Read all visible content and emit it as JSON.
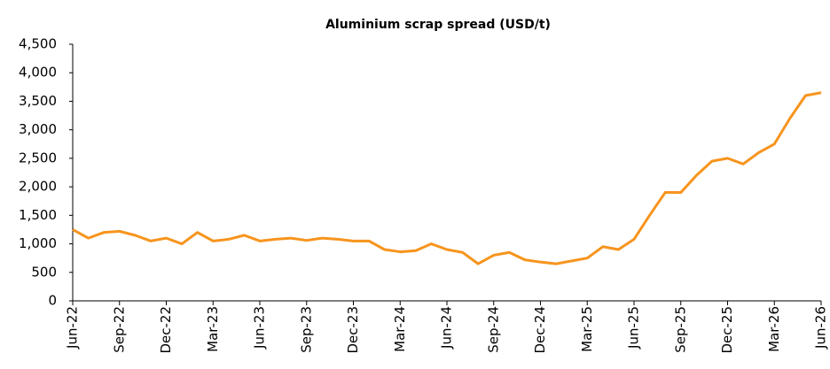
{
  "chart_data": {
    "type": "line",
    "title": "Aluminium scrap spread (USD/t)",
    "x": [
      "Jun-22",
      "Jul-22",
      "Aug-22",
      "Sep-22",
      "Oct-22",
      "Nov-22",
      "Dec-22",
      "Jan-23",
      "Feb-23",
      "Mar-23",
      "Apr-23",
      "May-23",
      "Jun-23",
      "Jul-23",
      "Aug-23",
      "Sep-23",
      "Oct-23",
      "Nov-23",
      "Dec-23",
      "Jan-24",
      "Feb-24",
      "Mar-24",
      "Apr-24",
      "May-24",
      "Jun-24",
      "Jul-24",
      "Aug-24",
      "Sep-24",
      "Oct-24",
      "Nov-24",
      "Dec-24",
      "Jan-25",
      "Feb-25",
      "Mar-25",
      "Apr-25",
      "May-25",
      "Jun-25",
      "Jul-25",
      "Aug-25",
      "Sep-25",
      "Oct-25",
      "Nov-25",
      "Dec-25",
      "Jan-26",
      "Feb-26",
      "Mar-26",
      "Apr-26",
      "May-26",
      "Jun-26"
    ],
    "series": [
      {
        "name": "Aluminium scrap spread",
        "color": "#f7941d",
        "values": [
          1250,
          1100,
          1200,
          1220,
          1150,
          1050,
          1100,
          1000,
          1200,
          1050,
          1080,
          1150,
          1050,
          1080,
          1100,
          1060,
          1100,
          1080,
          1050,
          1050,
          900,
          860,
          880,
          1000,
          900,
          850,
          650,
          800,
          850,
          720,
          680,
          650,
          700,
          750,
          950,
          900,
          1080,
          1500,
          1900,
          1900,
          2200,
          2450,
          2500,
          2400,
          2600,
          2750,
          3200,
          3600,
          3650
        ]
      }
    ],
    "xticks": [
      "Jun-22",
      "Sep-22",
      "Dec-22",
      "Mar-23",
      "Jun-23",
      "Sep-23",
      "Dec-23",
      "Mar-24",
      "Jun-24",
      "Sep-24",
      "Dec-24",
      "Mar-25",
      "Jun-25",
      "Sep-25",
      "Dec-25",
      "Mar-26",
      "Jun-26"
    ],
    "ylim": [
      0,
      4500
    ],
    "yticks": [
      0,
      500,
      {
        "value": 1000,
        "label": "1,000"
      },
      {
        "value": 1500,
        "label": "1,500"
      },
      {
        "value": 2000,
        "label": "2,000"
      },
      {
        "value": 2500,
        "label": "2,500"
      },
      {
        "value": 3000,
        "label": "3,000"
      },
      {
        "value": 3500,
        "label": "3,500"
      },
      {
        "value": 4000,
        "label": "4,000"
      },
      {
        "value": 4500,
        "label": "4,500"
      }
    ],
    "grid": false
  }
}
